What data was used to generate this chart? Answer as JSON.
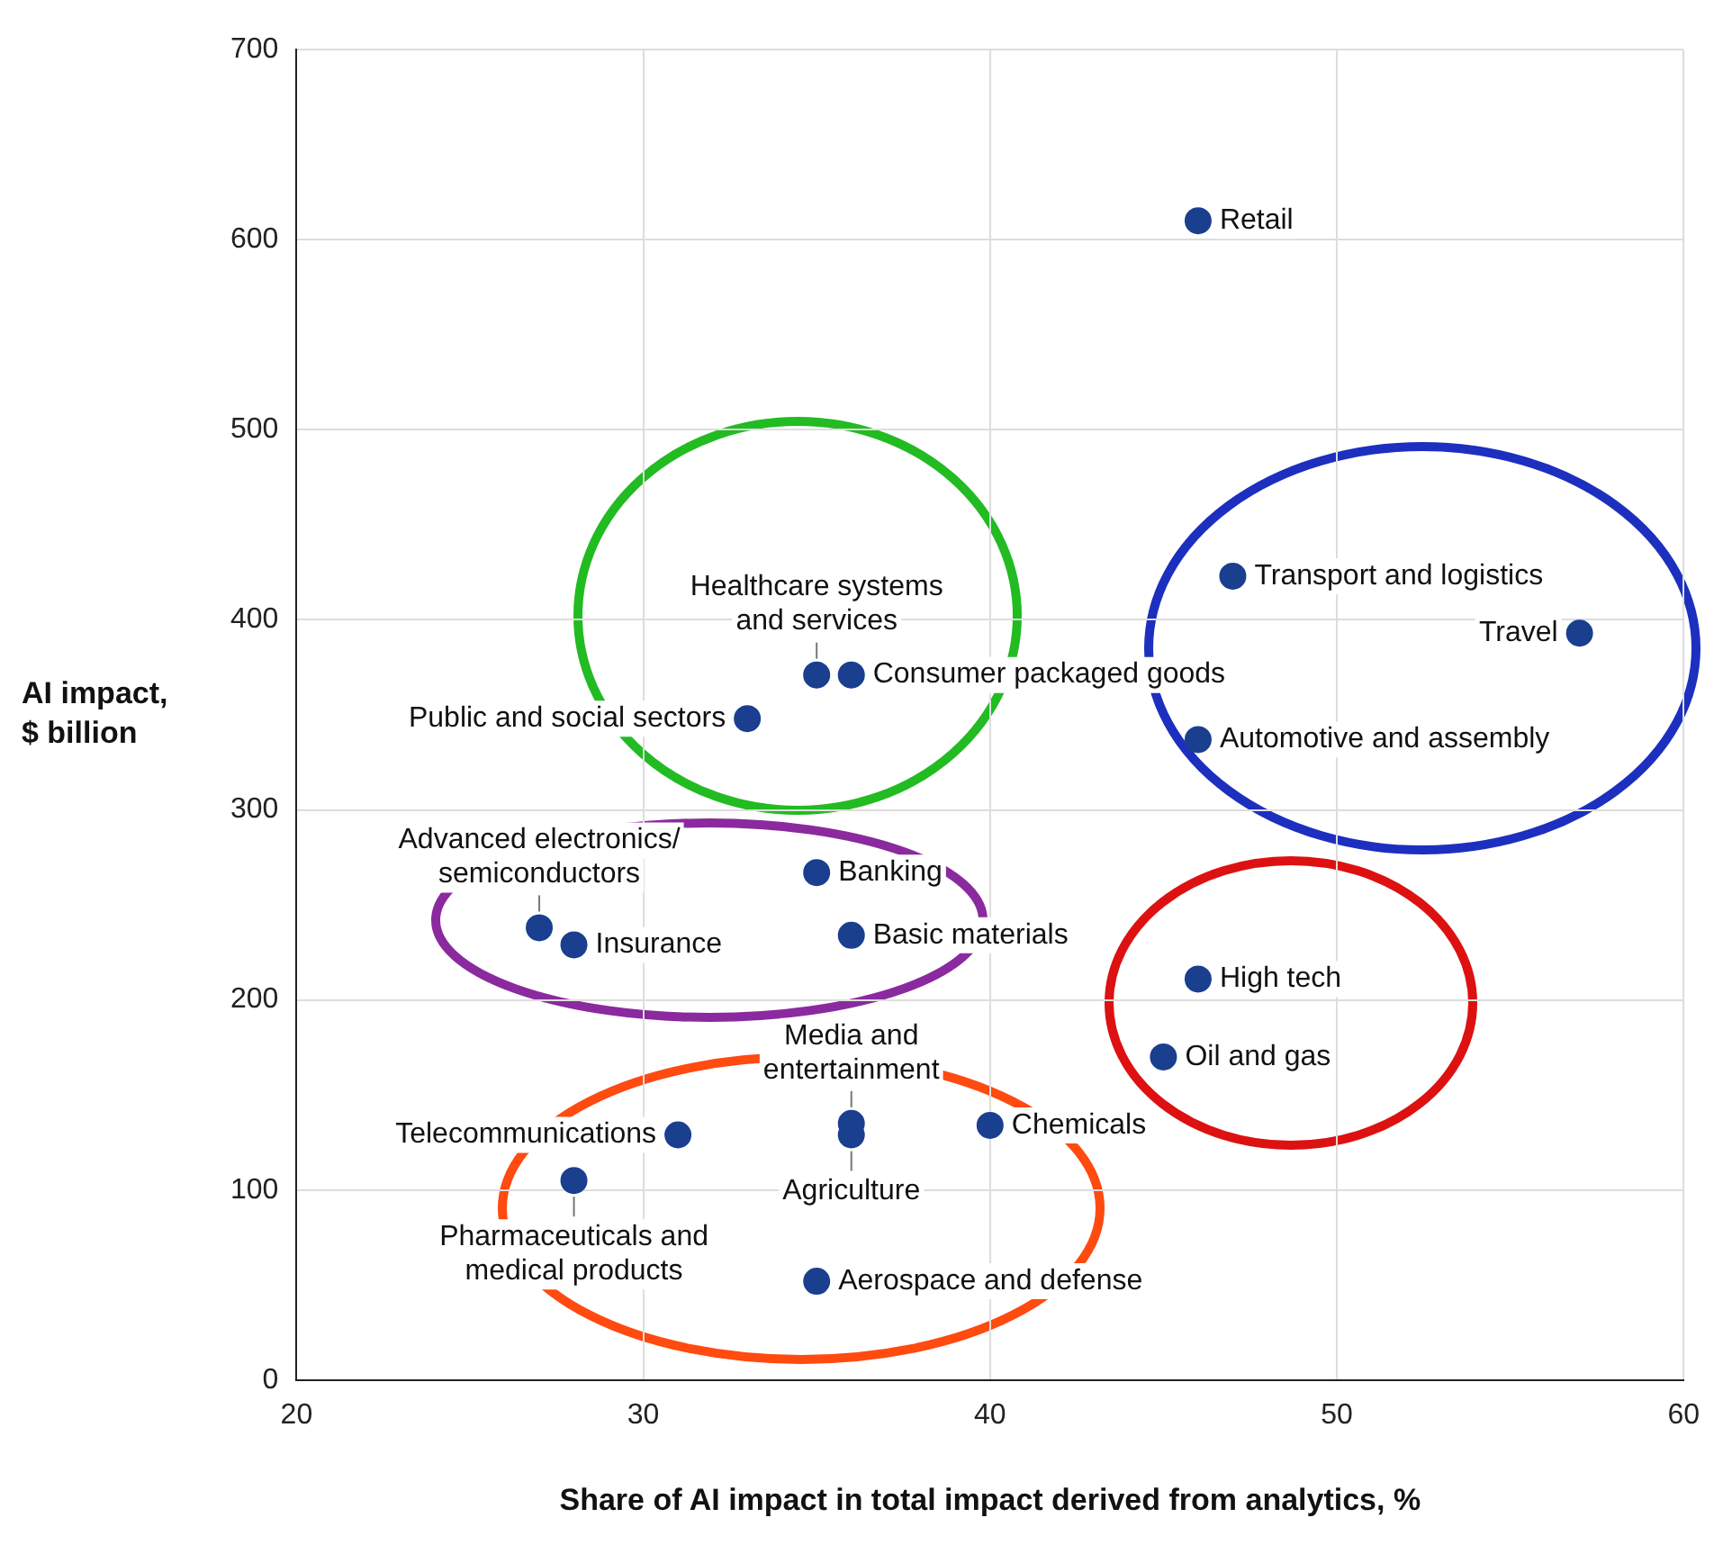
{
  "chart_data": {
    "type": "scatter",
    "xlabel": "Share of AI impact in total impact derived from analytics, %",
    "ylabel": "AI impact, $ billion",
    "x": [
      46,
      47,
      57,
      46,
      35,
      36,
      33,
      27,
      28,
      35,
      36,
      46,
      45,
      36,
      36,
      40,
      31,
      28,
      35
    ],
    "series": [
      {
        "color": "#1b3f8f",
        "values": [
          610,
          423,
          393,
          337,
          371,
          371,
          348,
          238,
          229,
          267,
          234,
          211,
          170,
          135,
          129,
          134,
          129,
          105,
          52
        ]
      }
    ],
    "annotations": [
      {
        "text": "Retail",
        "x": 46,
        "y": 610
      },
      {
        "text": "Transport and logistics",
        "x": 47,
        "y": 423
      },
      {
        "text": "Travel",
        "x": 57,
        "y": 393
      },
      {
        "text": "Automotive and assembly",
        "x": 46,
        "y": 337
      },
      {
        "text": "Healthcare systems and services",
        "x": 35,
        "y": 371
      },
      {
        "text": "Consumer packaged goods",
        "x": 36,
        "y": 371
      },
      {
        "text": "Public and social sectors",
        "x": 33,
        "y": 348
      },
      {
        "text": "Advanced electronics/ semiconductors",
        "x": 27,
        "y": 238
      },
      {
        "text": "Insurance",
        "x": 28,
        "y": 229
      },
      {
        "text": "Banking",
        "x": 35,
        "y": 267
      },
      {
        "text": "Basic materials",
        "x": 36,
        "y": 234
      },
      {
        "text": "High tech",
        "x": 46,
        "y": 211
      },
      {
        "text": "Oil and gas",
        "x": 45,
        "y": 170
      },
      {
        "text": "Media and entertainment",
        "x": 36,
        "y": 135
      },
      {
        "text": "Agriculture",
        "x": 36,
        "y": 129
      },
      {
        "text": "Chemicals",
        "x": 40,
        "y": 134
      },
      {
        "text": "Telecommunications",
        "x": 31,
        "y": 129
      },
      {
        "text": "Pharmaceuticals and medical products",
        "x": 28,
        "y": 105
      },
      {
        "text": "Aerospace and defense",
        "x": 35,
        "y": 52
      }
    ],
    "xlim": [
      20,
      60
    ],
    "xticks": [
      20,
      30,
      40,
      50,
      60
    ],
    "ylim": [
      0,
      700
    ],
    "yticks": [
      0,
      100,
      200,
      300,
      400,
      500,
      600,
      700
    ],
    "grid": true,
    "marker": "circle",
    "legend": false
  }
}
